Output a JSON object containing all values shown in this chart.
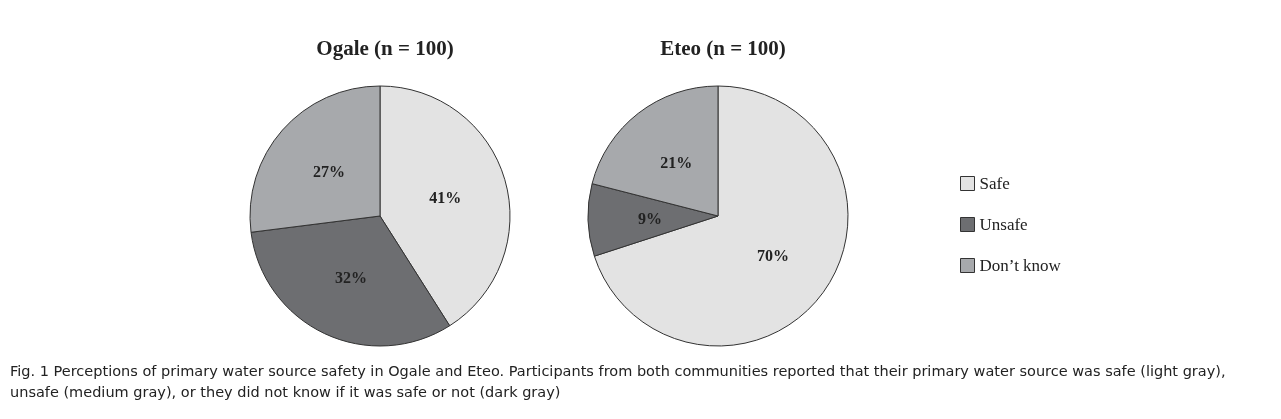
{
  "chart_data": {
    "type": "pie",
    "categories": [
      "Safe",
      "Unsafe",
      "Don’t know"
    ],
    "colors": [
      "#e3e3e3",
      "#6d6e71",
      "#a7a9ac"
    ],
    "legend": "right",
    "series": [
      {
        "name": "Ogale (n = 100)",
        "values": [
          41,
          32,
          27
        ],
        "value_labels": [
          "41%",
          "32%",
          "27%"
        ]
      },
      {
        "name": "Eteo (n = 100)",
        "values": [
          70,
          9,
          21
        ],
        "value_labels": [
          "70%",
          "9%",
          "21%"
        ]
      }
    ],
    "annotations": [
      "Fig. 1 Perceptions of primary water source safety in Ogale and Eteo. Participants from both communities reported that their primary water source was safe (light gray), unsafe (medium gray), or they did not know if it was safe or not (dark gray)"
    ]
  }
}
